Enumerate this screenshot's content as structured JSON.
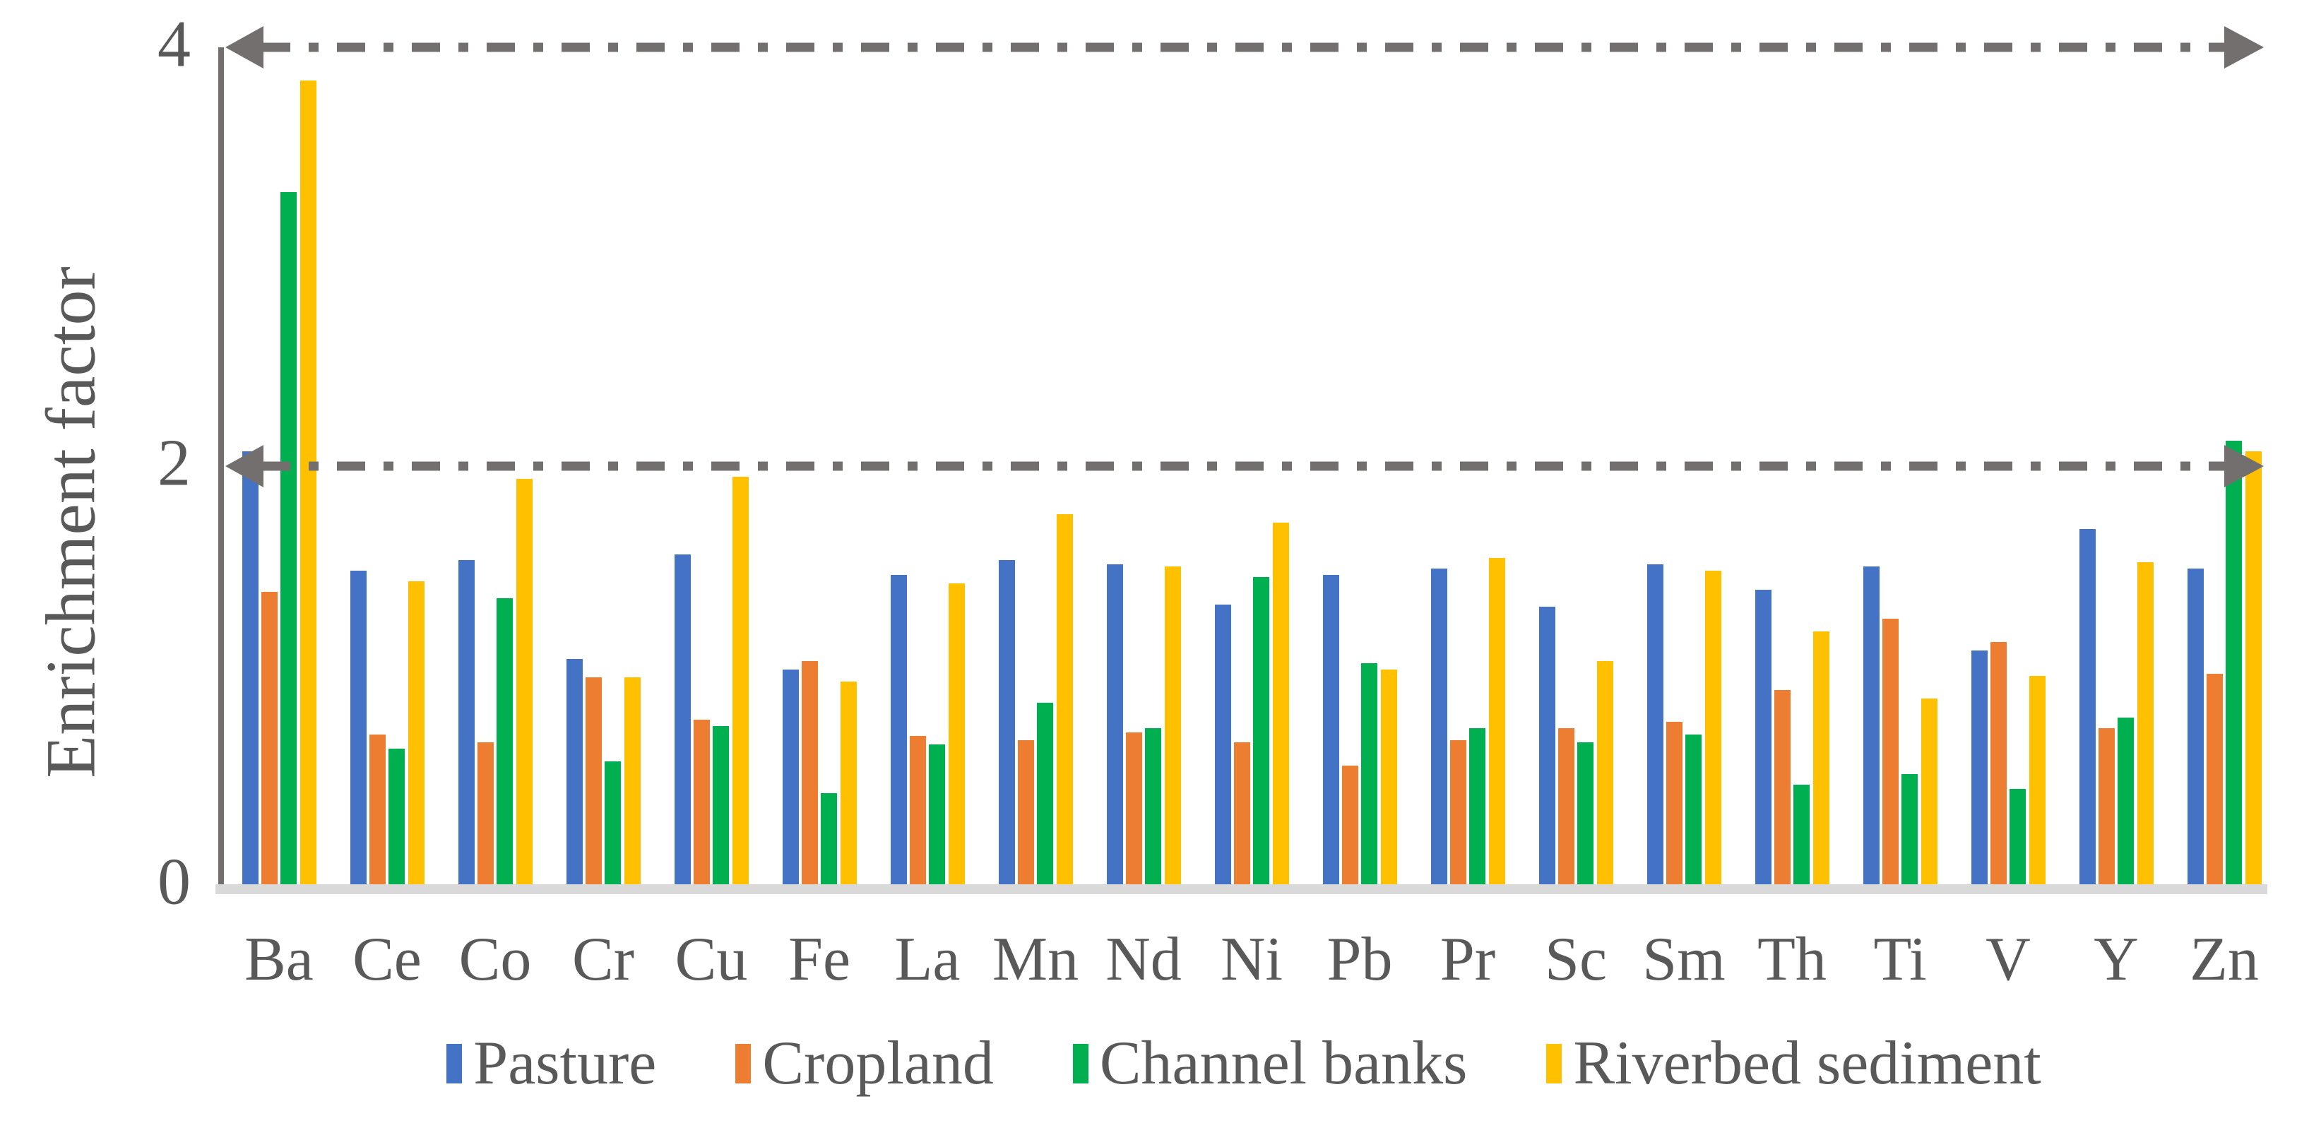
{
  "chart_data": {
    "type": "bar",
    "title": "",
    "ylabel": "Enrichment factor",
    "xlabel": "",
    "ylim": [
      0,
      4
    ],
    "yticks": [
      0,
      2,
      4
    ],
    "grid": false,
    "legend_position": "bottom",
    "categories": [
      "Ba",
      "Ce",
      "Co",
      "Cr",
      "Cu",
      "Fe",
      "La",
      "Mn",
      "Nd",
      "Ni",
      "Pb",
      "Pr",
      "Sc",
      "Sm",
      "Th",
      "Ti",
      "V",
      "Y",
      "Zn"
    ],
    "series": [
      {
        "name": "Pasture",
        "color": "#4472C4",
        "values": [
          2.07,
          1.5,
          1.55,
          1.08,
          1.58,
          1.03,
          1.48,
          1.55,
          1.53,
          1.34,
          1.48,
          1.51,
          1.33,
          1.53,
          1.41,
          1.52,
          1.12,
          1.7,
          1.51
        ]
      },
      {
        "name": "Cropland",
        "color": "#ED7D31",
        "values": [
          1.4,
          0.72,
          0.68,
          0.99,
          0.79,
          1.07,
          0.71,
          0.69,
          0.73,
          0.68,
          0.57,
          0.69,
          0.75,
          0.78,
          0.93,
          1.27,
          1.16,
          0.75,
          1.01
        ]
      },
      {
        "name": "Channel banks",
        "color": "#00B050",
        "values": [
          3.31,
          0.65,
          1.37,
          0.59,
          0.76,
          0.44,
          0.67,
          0.87,
          0.75,
          1.47,
          1.06,
          0.75,
          0.68,
          0.72,
          0.48,
          0.53,
          0.46,
          0.8,
          2.12
        ]
      },
      {
        "name": "Riverbed sediment",
        "color": "#FFC000",
        "values": [
          3.84,
          1.45,
          1.94,
          0.99,
          1.95,
          0.97,
          1.44,
          1.77,
          1.52,
          1.73,
          1.03,
          1.56,
          1.07,
          1.5,
          1.21,
          0.89,
          1.0,
          1.54,
          2.07
        ]
      }
    ],
    "ref_lines": [
      {
        "value": 4,
        "style": "dash-dot-double-arrow"
      },
      {
        "value": 2,
        "style": "dash-dot-double-arrow"
      }
    ],
    "ref_line_color": "#736F6F",
    "axis_color": "#736F6F",
    "baseline_color": "#D9D9D9",
    "text_color": "#595959"
  }
}
